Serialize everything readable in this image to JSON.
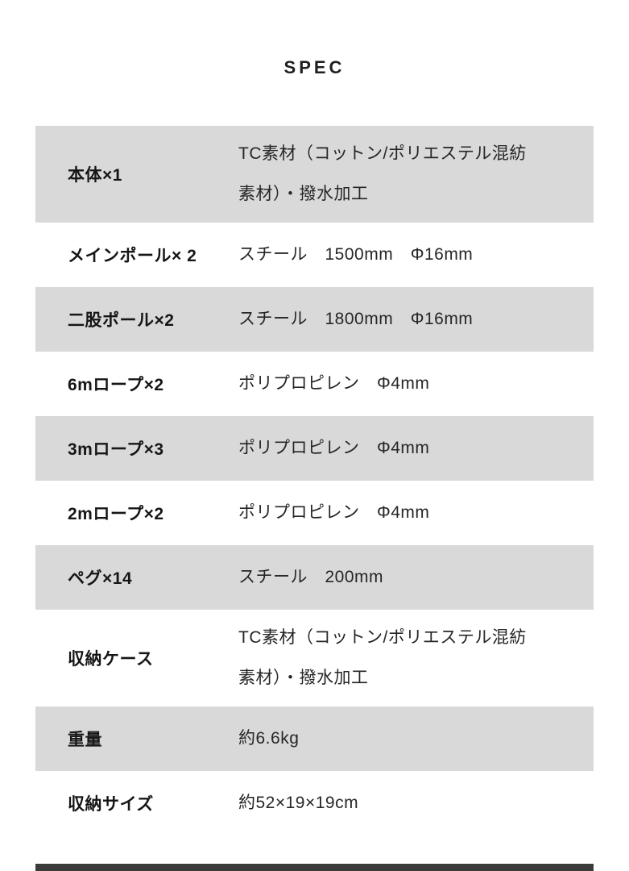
{
  "page": {
    "background_color": "#ffffff",
    "row_shade_color": "#d9d9d9",
    "text_color": "#1f1f1f",
    "bottom_bar_color": "#3b3b3b"
  },
  "header": {
    "title": "SPEC"
  },
  "spec_table": {
    "rows": [
      {
        "label": "本体×1",
        "value": "TC素材（コットン/ポリエステル混紡\n素材）・撥水加工",
        "shaded": true,
        "double": true
      },
      {
        "label": "メインポール× 2",
        "value": "スチール　1500mm　Φ16mm",
        "shaded": false,
        "double": false
      },
      {
        "label": "二股ポール×2",
        "value": "スチール　1800mm　Φ16mm",
        "shaded": true,
        "double": false
      },
      {
        "label": "6mロープ×2",
        "value": "ポリプロピレン　Φ4mm",
        "shaded": false,
        "double": false
      },
      {
        "label": "3mロープ×3",
        "value": "ポリプロピレン　Φ4mm",
        "shaded": true,
        "double": false
      },
      {
        "label": "2mロープ×2",
        "value": "ポリプロピレン　Φ4mm",
        "shaded": false,
        "double": false
      },
      {
        "label": "ペグ×14",
        "value": "スチール　200mm",
        "shaded": true,
        "double": false
      },
      {
        "label": "収納ケース",
        "value": "TC素材（コットン/ポリエステル混紡\n素材）・撥水加工",
        "shaded": false,
        "double": true
      },
      {
        "label": "重量",
        "value": "約6.6kg",
        "shaded": true,
        "double": false
      },
      {
        "label": "収納サイズ",
        "value": "約52×19×19cm",
        "shaded": false,
        "double": false
      }
    ]
  }
}
